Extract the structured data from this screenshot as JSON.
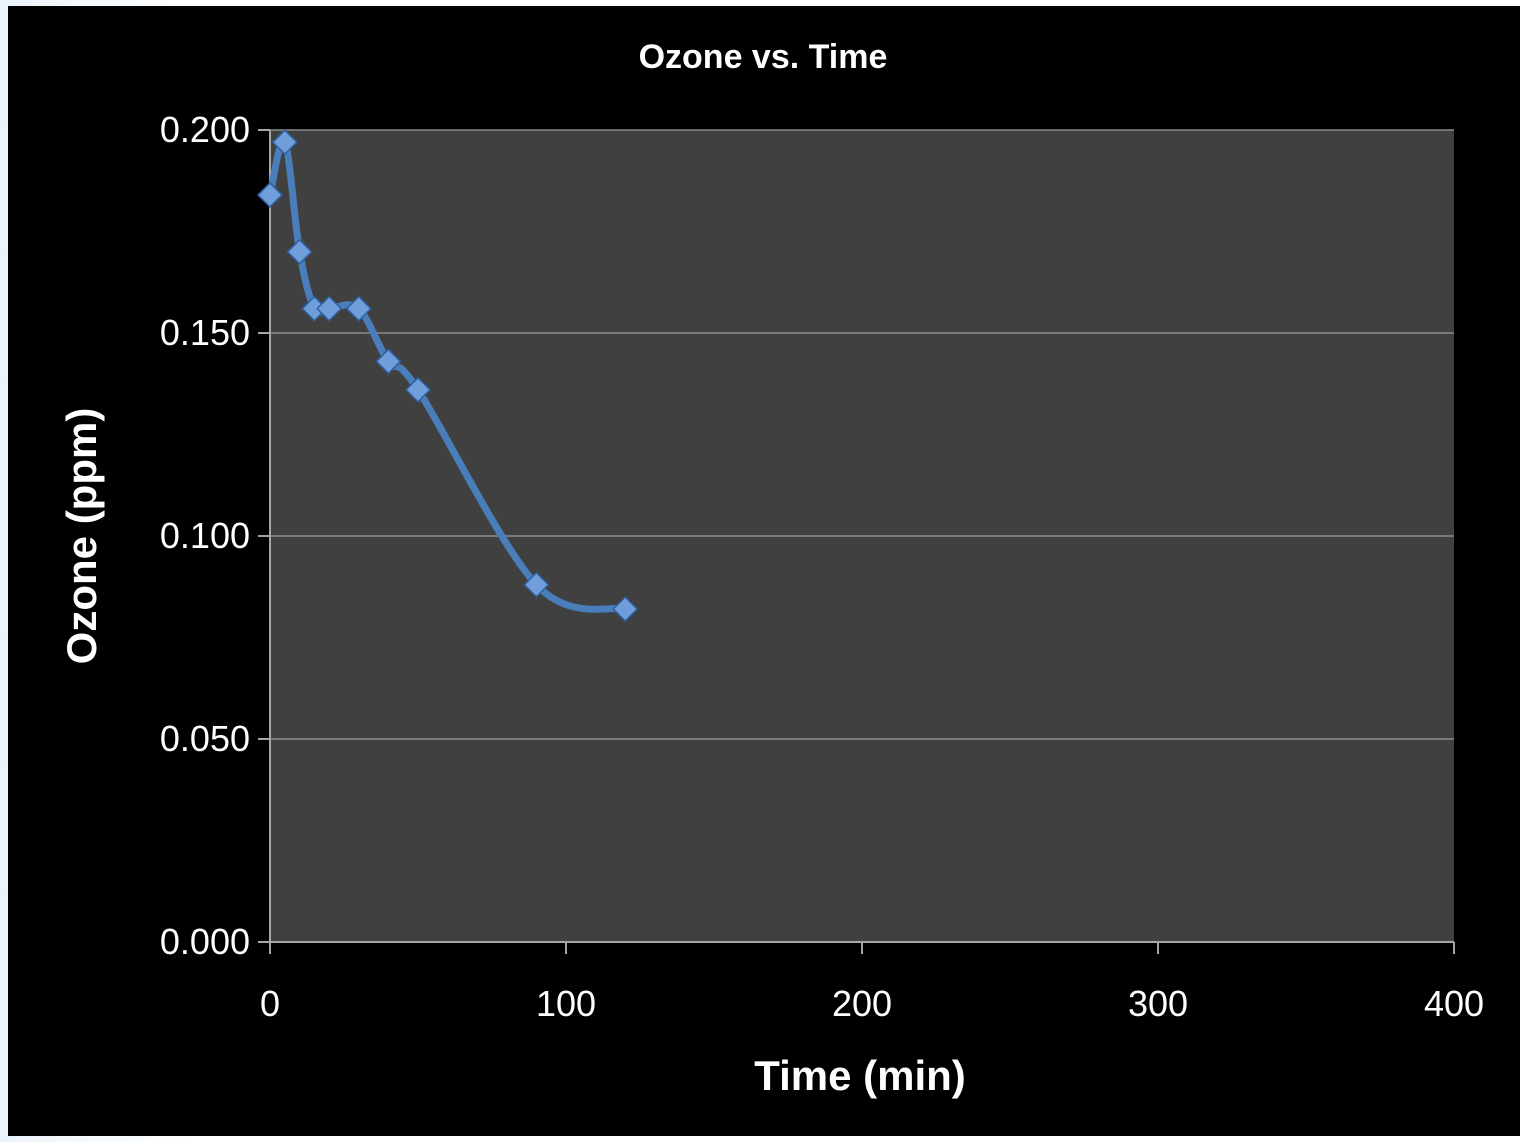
{
  "chart_data": {
    "type": "line",
    "title": "Ozone vs. Time",
    "xlabel": "Time (min)",
    "ylabel": "Ozone (ppm)",
    "xlim": [
      0,
      400
    ],
    "ylim": [
      0,
      0.2
    ],
    "x_ticks": [
      "0",
      "100",
      "200",
      "300",
      "400"
    ],
    "y_ticks": [
      "0.000",
      "0.050",
      "0.100",
      "0.150",
      "0.200"
    ],
    "grid": "horizontal",
    "legend": "none",
    "series": [
      {
        "color": "#4a7ebb",
        "marker": "diamond",
        "smooth": true,
        "x": [
          0,
          5,
          10,
          15,
          20,
          30,
          40,
          50,
          90,
          120
        ],
        "y": [
          0.184,
          0.197,
          0.17,
          0.156,
          0.156,
          0.156,
          0.143,
          0.136,
          0.088,
          0.082
        ]
      }
    ]
  },
  "colors": {
    "frame_background": "#000000",
    "plot_background": "#404040",
    "gridline": "#8c8c8c",
    "axis_line": "#a6a6a6",
    "text": "#ffffff"
  }
}
